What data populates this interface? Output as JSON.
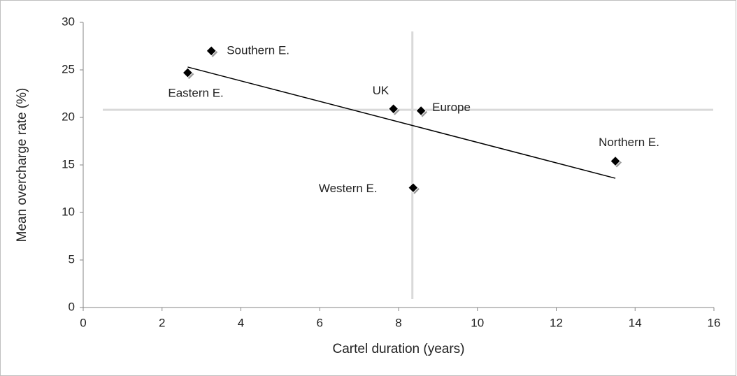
{
  "chart_data": {
    "type": "scatter",
    "x_label": "Cartel duration (years)",
    "y_label": "Mean overcharge rate (%)",
    "series": [
      {
        "labels": [
          "Southern E.",
          "Eastern E.",
          "UK",
          "Europe",
          "Western E.",
          "Northern E."
        ],
        "x": [
          3.25,
          2.65,
          7.87,
          8.57,
          8.37,
          13.5
        ],
        "values": [
          27.0,
          24.7,
          20.9,
          20.7,
          12.6,
          15.4
        ],
        "color": "#000000"
      }
    ],
    "trendline": {
      "x": [
        2.65,
        13.5
      ],
      "values": [
        25.3,
        13.6
      ],
      "color": "#000000"
    },
    "reference_lines": {
      "x": 8.35,
      "y": 20.8,
      "color": "#d9d9d9"
    },
    "xlim": [
      0,
      16
    ],
    "xticks": [
      0,
      2,
      4,
      6,
      8,
      10,
      12,
      14,
      16
    ],
    "ylim": [
      0,
      30
    ],
    "yticks": [
      0,
      5,
      10,
      15,
      20,
      25,
      30
    ]
  }
}
